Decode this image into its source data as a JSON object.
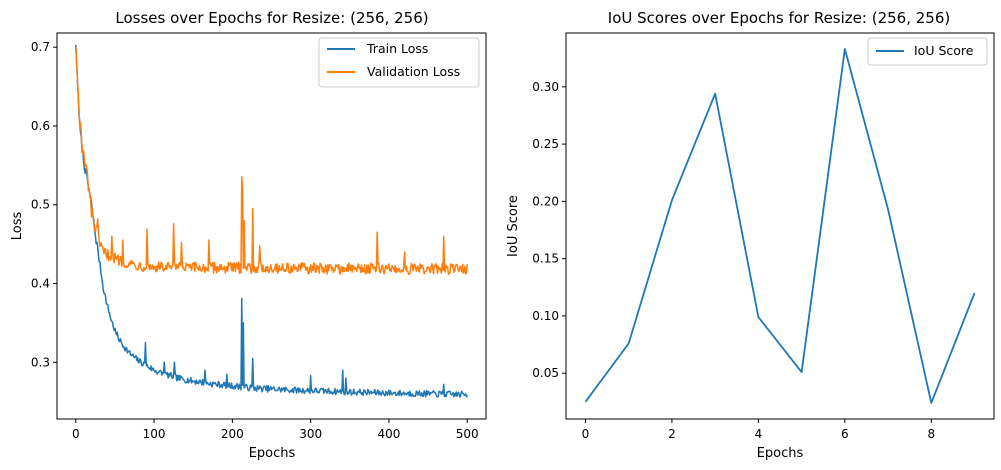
{
  "colors": {
    "train": "#1f77b4",
    "validation": "#ff7f0e",
    "iou": "#1f77b4"
  },
  "chart_data": [
    {
      "type": "line",
      "title": "Losses over Epochs for Resize: (256, 256)",
      "xlabel": "Epochs",
      "ylabel": "Loss",
      "xlim": [
        -24,
        524
      ],
      "ylim": [
        0.228,
        0.718
      ],
      "xticks": [
        0,
        100,
        200,
        300,
        400,
        500
      ],
      "xtick_labels": [
        "0",
        "100",
        "200",
        "300",
        "400",
        "500"
      ],
      "yticks": [
        0.3,
        0.4,
        0.5,
        0.6,
        0.7
      ],
      "ytick_labels": [
        "0.3",
        "0.4",
        "0.5",
        "0.6",
        "0.7"
      ],
      "legend": "top-right",
      "series": [
        {
          "name": "Train Loss",
          "color": "#1f77b4",
          "anchors": [
            [
              0,
              0.703
            ],
            [
              2,
              0.66
            ],
            [
              5,
              0.6
            ],
            [
              8,
              0.572
            ],
            [
              10,
              0.555
            ],
            [
              15,
              0.53
            ],
            [
              20,
              0.5
            ],
            [
              25,
              0.462
            ],
            [
              30,
              0.43
            ],
            [
              35,
              0.395
            ],
            [
              40,
              0.373
            ],
            [
              45,
              0.355
            ],
            [
              50,
              0.34
            ],
            [
              55,
              0.33
            ],
            [
              60,
              0.322
            ],
            [
              70,
              0.31
            ],
            [
              80,
              0.302
            ],
            [
              90,
              0.296
            ],
            [
              100,
              0.29
            ],
            [
              110,
              0.286
            ],
            [
              120,
              0.283
            ],
            [
              130,
              0.28
            ],
            [
              140,
              0.278
            ],
            [
              150,
              0.276
            ],
            [
              160,
              0.275
            ],
            [
              170,
              0.273
            ],
            [
              180,
              0.272
            ],
            [
              190,
              0.271
            ],
            [
              200,
              0.27
            ],
            [
              210,
              0.269
            ],
            [
              220,
              0.268
            ],
            [
              230,
              0.267
            ],
            [
              250,
              0.266
            ],
            [
              270,
              0.265
            ],
            [
              300,
              0.264
            ],
            [
              330,
              0.263
            ],
            [
              360,
              0.262
            ],
            [
              400,
              0.261
            ],
            [
              450,
              0.26
            ],
            [
              500,
              0.259
            ]
          ],
          "spikes": [
            [
              89,
              0.325
            ],
            [
              113,
              0.3
            ],
            [
              126,
              0.3
            ],
            [
              165,
              0.29
            ],
            [
              193,
              0.285
            ],
            [
              212,
              0.381
            ],
            [
              214,
              0.35
            ],
            [
              226,
              0.305
            ],
            [
              300,
              0.283
            ],
            [
              341,
              0.29
            ],
            [
              345,
              0.28
            ],
            [
              470,
              0.272
            ]
          ],
          "noise": 0.004
        },
        {
          "name": "Validation Loss",
          "color": "#ff7f0e",
          "anchors": [
            [
              0,
              0.7
            ],
            [
              2,
              0.66
            ],
            [
              5,
              0.61
            ],
            [
              8,
              0.575
            ],
            [
              10,
              0.56
            ],
            [
              15,
              0.535
            ],
            [
              20,
              0.49
            ],
            [
              25,
              0.47
            ],
            [
              30,
              0.45
            ],
            [
              35,
              0.44
            ],
            [
              40,
              0.437
            ],
            [
              50,
              0.432
            ],
            [
              60,
              0.428
            ],
            [
              70,
              0.425
            ],
            [
              80,
              0.423
            ],
            [
              100,
              0.421
            ],
            [
              150,
              0.42
            ],
            [
              200,
              0.42
            ],
            [
              250,
              0.42
            ],
            [
              300,
              0.419
            ],
            [
              350,
              0.419
            ],
            [
              400,
              0.419
            ],
            [
              450,
              0.418
            ],
            [
              500,
              0.419
            ]
          ],
          "spikes": [
            [
              28,
              0.482
            ],
            [
              46,
              0.46
            ],
            [
              60,
              0.455
            ],
            [
              91,
              0.469
            ],
            [
              125,
              0.476
            ],
            [
              135,
              0.452
            ],
            [
              170,
              0.455
            ],
            [
              212,
              0.535
            ],
            [
              213,
              0.52
            ],
            [
              215,
              0.48
            ],
            [
              226,
              0.495
            ],
            [
              235,
              0.448
            ],
            [
              385,
              0.465
            ],
            [
              420,
              0.44
            ],
            [
              470,
              0.46
            ]
          ],
          "noise": 0.007
        }
      ]
    },
    {
      "type": "line",
      "title": "IoU Scores over Epochs for Resize: (256, 256)",
      "xlabel": "Epochs",
      "ylabel": "IoU Score",
      "xlim": [
        -0.45,
        9.45
      ],
      "ylim": [
        0.01,
        0.347
      ],
      "xticks": [
        0,
        2,
        4,
        6,
        8
      ],
      "xtick_labels": [
        "0",
        "2",
        "4",
        "6",
        "8"
      ],
      "yticks": [
        0.05,
        0.1,
        0.15,
        0.2,
        0.25,
        0.3
      ],
      "ytick_labels": [
        "0.05",
        "0.10",
        "0.15",
        "0.20",
        "0.25",
        "0.30"
      ],
      "legend": "top-right",
      "series": [
        {
          "name": "IoU Score",
          "color": "#1f77b4",
          "x": [
            0,
            1,
            2,
            3,
            4,
            5,
            6,
            7,
            8,
            9
          ],
          "values": [
            0.025,
            0.076,
            0.201,
            0.294,
            0.099,
            0.051,
            0.333,
            0.193,
            0.024,
            0.12
          ]
        }
      ]
    }
  ]
}
